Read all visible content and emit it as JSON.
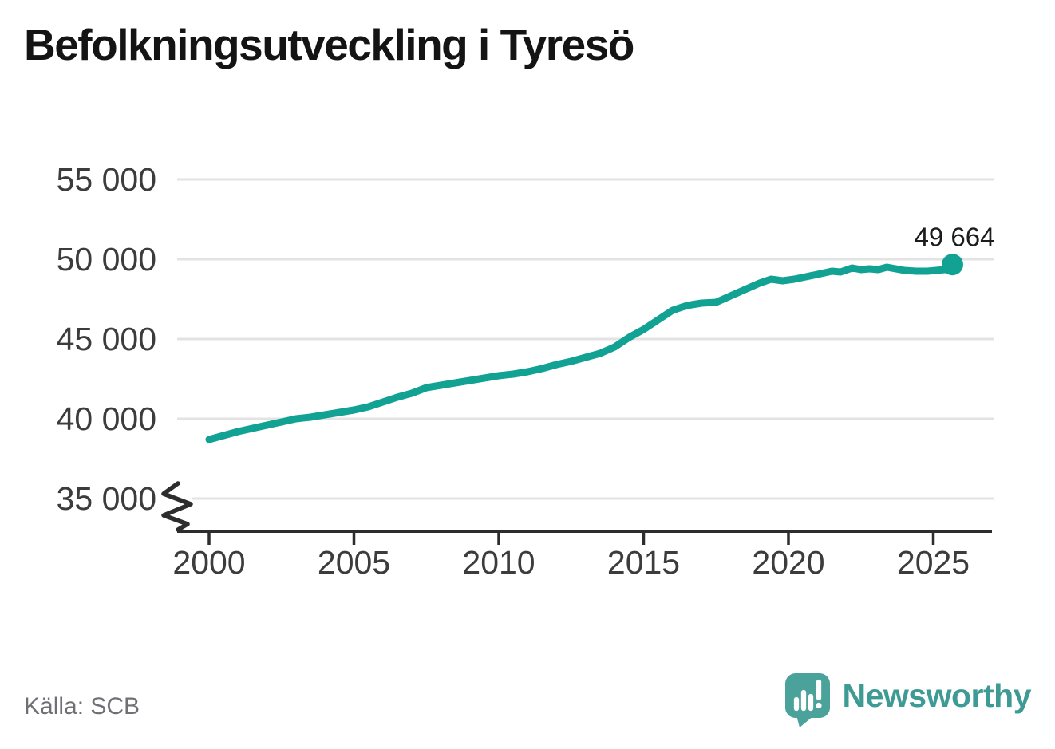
{
  "title": "Befolkningsutveckling i Tyresö",
  "source": "Källa: SCB",
  "logo": {
    "text": "Newsworthy"
  },
  "colors": {
    "line": "#12a294",
    "grid": "#e3e3e3",
    "axis": "#2d2d2d",
    "tick_text": "#3c3c3c",
    "title_text": "#141414",
    "end_label_text": "#1c1c1c",
    "source_text": "#6f6f75",
    "logo_bubble": "#4ba29b",
    "logo_text": "#3e9a94"
  },
  "chart_data": {
    "type": "line",
    "title": "Befolkningsutveckling i Tyresö",
    "xlabel": "",
    "ylabel": "",
    "grid": "horizontal",
    "legend": "none",
    "x_ticks": [
      2000,
      2005,
      2010,
      2015,
      2020,
      2025
    ],
    "x_tick_labels": [
      "2000",
      "2005",
      "2010",
      "2015",
      "2020",
      "2025"
    ],
    "y_ticks": [
      55000,
      50000,
      45000,
      40000,
      35000
    ],
    "y_tick_labels": [
      "55 000",
      "50 000",
      "45 000",
      "40 000",
      "35 000"
    ],
    "ylim_displayed": [
      35000,
      55000
    ],
    "xlim": [
      2000,
      2027
    ],
    "axis_break_below": 35000,
    "series": [
      {
        "points": [
          [
            2000.0,
            38700
          ],
          [
            2000.4,
            38900
          ],
          [
            2001.0,
            39200
          ],
          [
            2001.5,
            39400
          ],
          [
            2002.0,
            39600
          ],
          [
            2002.5,
            39800
          ],
          [
            2003.0,
            40000
          ],
          [
            2003.5,
            40100
          ],
          [
            2004.0,
            40250
          ],
          [
            2004.5,
            40400
          ],
          [
            2005.0,
            40550
          ],
          [
            2005.5,
            40750
          ],
          [
            2006.0,
            41050
          ],
          [
            2006.5,
            41350
          ],
          [
            2007.0,
            41600
          ],
          [
            2007.5,
            41950
          ],
          [
            2008.0,
            42100
          ],
          [
            2008.5,
            42250
          ],
          [
            2009.0,
            42400
          ],
          [
            2009.5,
            42550
          ],
          [
            2010.0,
            42700
          ],
          [
            2010.5,
            42800
          ],
          [
            2011.0,
            42950
          ],
          [
            2011.5,
            43150
          ],
          [
            2012.0,
            43400
          ],
          [
            2012.5,
            43600
          ],
          [
            2013.0,
            43850
          ],
          [
            2013.5,
            44100
          ],
          [
            2014.0,
            44500
          ],
          [
            2014.5,
            45100
          ],
          [
            2015.0,
            45600
          ],
          [
            2015.5,
            46200
          ],
          [
            2016.0,
            46800
          ],
          [
            2016.5,
            47100
          ],
          [
            2017.0,
            47250
          ],
          [
            2017.5,
            47300
          ],
          [
            2018.0,
            47700
          ],
          [
            2018.5,
            48100
          ],
          [
            2019.0,
            48500
          ],
          [
            2019.4,
            48750
          ],
          [
            2019.8,
            48650
          ],
          [
            2020.2,
            48750
          ],
          [
            2020.6,
            48900
          ],
          [
            2021.0,
            49050
          ],
          [
            2021.5,
            49250
          ],
          [
            2021.8,
            49200
          ],
          [
            2022.2,
            49450
          ],
          [
            2022.5,
            49350
          ],
          [
            2022.8,
            49400
          ],
          [
            2023.1,
            49350
          ],
          [
            2023.4,
            49500
          ],
          [
            2023.7,
            49400
          ],
          [
            2024.0,
            49300
          ],
          [
            2024.4,
            49250
          ],
          [
            2024.8,
            49250
          ],
          [
            2025.1,
            49300
          ],
          [
            2025.4,
            49350
          ],
          [
            2025.66,
            49664
          ]
        ]
      }
    ],
    "end_annotation": {
      "x": 2025.66,
      "value": 49664,
      "label": "49 664"
    }
  }
}
